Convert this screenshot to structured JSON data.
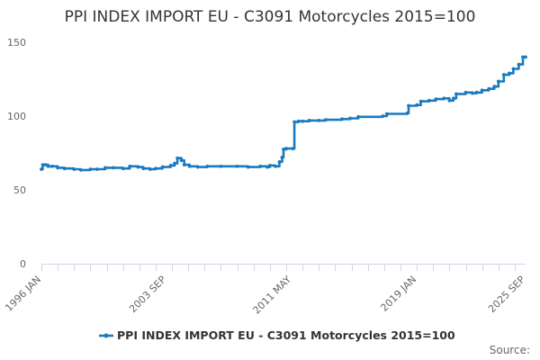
{
  "chart_data": {
    "type": "line",
    "title": "PPI INDEX IMPORT EU - C3091 Motorcycles 2015=100",
    "xlabel": "",
    "ylabel": "",
    "ylim": [
      0,
      150
    ],
    "yticks": [
      0,
      50,
      100,
      150
    ],
    "x_range": [
      "1996-01",
      "2025-09"
    ],
    "xtick_labels": [
      {
        "date": "1996-01",
        "label": "1996 JAN"
      },
      {
        "date": "2003-09",
        "label": "2003 SEP"
      },
      {
        "date": "2011-05",
        "label": "2011 MAY"
      },
      {
        "date": "2019-01",
        "label": "2019 JAN"
      },
      {
        "date": "2025-09",
        "label": "2025 SEP"
      }
    ],
    "legend_position": "bottom",
    "grid": false,
    "series": [
      {
        "name": "PPI INDEX IMPORT EU - C3091 Motorcycles 2015=100",
        "color": "#1a7bbf",
        "points": [
          [
            "1996-01",
            64
          ],
          [
            "1996-02",
            67
          ],
          [
            "1996-04",
            67
          ],
          [
            "1996-06",
            66
          ],
          [
            "1996-09",
            66
          ],
          [
            "1997-01",
            65
          ],
          [
            "1997-06",
            64.5
          ],
          [
            "1998-01",
            64
          ],
          [
            "1998-06",
            63.5
          ],
          [
            "1999-01",
            64
          ],
          [
            "1999-06",
            64
          ],
          [
            "1999-12",
            65
          ],
          [
            "2000-06",
            65
          ],
          [
            "2001-01",
            64.5
          ],
          [
            "2001-06",
            66
          ],
          [
            "2001-12",
            65.5
          ],
          [
            "2002-04",
            64.5
          ],
          [
            "2002-09",
            64
          ],
          [
            "2003-01",
            64.5
          ],
          [
            "2003-06",
            65.5
          ],
          [
            "2003-12",
            66.5
          ],
          [
            "2004-03",
            68
          ],
          [
            "2004-05",
            71.5
          ],
          [
            "2004-08",
            70
          ],
          [
            "2004-10",
            67
          ],
          [
            "2005-02",
            66
          ],
          [
            "2005-08",
            65.5
          ],
          [
            "2006-03",
            66
          ],
          [
            "2007-01",
            66
          ],
          [
            "2008-01",
            66
          ],
          [
            "2008-09",
            65.5
          ],
          [
            "2009-06",
            66
          ],
          [
            "2009-11",
            65.5
          ],
          [
            "2010-01",
            66.5
          ],
          [
            "2010-05",
            66
          ],
          [
            "2010-08",
            69
          ],
          [
            "2010-10",
            72
          ],
          [
            "2010-11",
            77.5
          ],
          [
            "2011-01",
            78
          ],
          [
            "2011-06",
            78
          ],
          [
            "2011-07",
            96
          ],
          [
            "2011-10",
            96.5
          ],
          [
            "2012-01",
            96.5
          ],
          [
            "2012-06",
            97
          ],
          [
            "2013-01",
            97
          ],
          [
            "2013-06",
            97.5
          ],
          [
            "2014-06",
            98
          ],
          [
            "2014-12",
            98.5
          ],
          [
            "2015-06",
            99.5
          ],
          [
            "2016-12",
            100
          ],
          [
            "2017-03",
            101.5
          ],
          [
            "2018-06",
            102
          ],
          [
            "2018-07",
            107
          ],
          [
            "2019-01",
            107.5
          ],
          [
            "2019-04",
            110
          ],
          [
            "2019-10",
            110.5
          ],
          [
            "2020-03",
            111.5
          ],
          [
            "2020-09",
            112
          ],
          [
            "2021-01",
            110.5
          ],
          [
            "2021-04",
            112
          ],
          [
            "2021-06",
            115
          ],
          [
            "2022-01",
            116
          ],
          [
            "2022-06",
            115.5
          ],
          [
            "2022-09",
            116
          ],
          [
            "2023-01",
            117.5
          ],
          [
            "2023-06",
            118.5
          ],
          [
            "2023-10",
            120
          ],
          [
            "2024-01",
            123.5
          ],
          [
            "2024-05",
            128
          ],
          [
            "2024-09",
            129
          ],
          [
            "2024-12",
            132
          ],
          [
            "2025-04",
            135
          ],
          [
            "2025-07",
            140
          ],
          [
            "2025-09",
            140
          ]
        ]
      }
    ],
    "credits": "Source:"
  }
}
